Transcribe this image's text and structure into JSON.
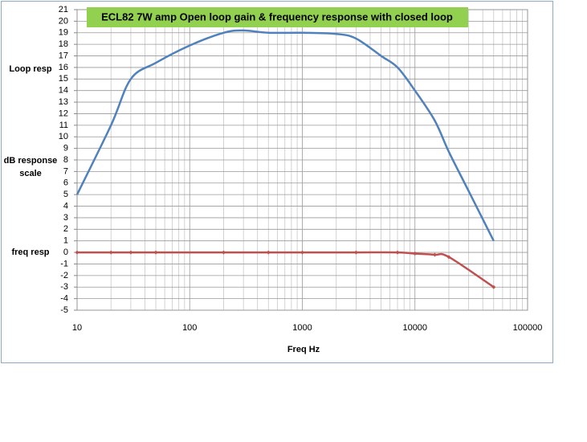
{
  "chart_data": {
    "type": "line",
    "title": "ECL82 7W amp Open loop gain & frequency response with closed loop",
    "xlabel": "Freq Hz",
    "annotations": [
      "Loop resp",
      "dB response",
      "scale",
      "freq resp"
    ],
    "xscale": "log",
    "xlim": [
      10,
      100000
    ],
    "xticks": [
      10,
      100,
      1000,
      10000,
      100000
    ],
    "ylim": [
      -5,
      21
    ],
    "yticks": [
      -5,
      -4,
      -3,
      -2,
      -1,
      0,
      1,
      2,
      3,
      4,
      5,
      6,
      7,
      8,
      9,
      10,
      11,
      12,
      13,
      14,
      15,
      16,
      17,
      18,
      19,
      20,
      21
    ],
    "grid": true,
    "series": [
      {
        "color": "#4f81bd",
        "markers": false,
        "x": [
          10,
          20,
          30,
          50,
          100,
          200,
          300,
          500,
          1000,
          2000,
          3000,
          5000,
          7000,
          10000,
          15000,
          20000,
          30000,
          50000
        ],
        "values": [
          5,
          11,
          15,
          16.4,
          17.9,
          19,
          19.2,
          19,
          19,
          18.9,
          18.5,
          17,
          16,
          14,
          11.4,
          8.7,
          5.3,
          1
        ]
      },
      {
        "color": "#c0504d",
        "markers": true,
        "x": [
          10,
          20,
          30,
          50,
          200,
          500,
          1000,
          3000,
          7000,
          10000,
          15000,
          20000,
          50000
        ],
        "values": [
          0,
          0,
          0,
          0,
          0,
          0,
          0,
          0,
          0,
          -0.1,
          -0.2,
          -0.4,
          -3
        ]
      }
    ]
  }
}
